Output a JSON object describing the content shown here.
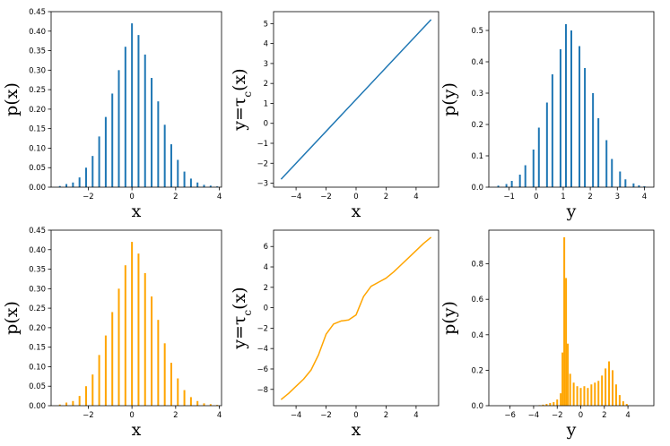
{
  "chart_data": [
    {
      "type": "bar",
      "xlabel": "x",
      "ylabel": "p(x)",
      "xlim": [
        -3.7,
        4.1
      ],
      "ylim": [
        0,
        0.45
      ],
      "xticks": [
        -2,
        0,
        2,
        4
      ],
      "yticks": [
        0.0,
        0.05,
        0.1,
        0.15,
        0.2,
        0.25,
        0.3,
        0.35,
        0.4,
        0.45
      ],
      "ytick_labels": [
        "0.00",
        "0.05",
        "0.10",
        "0.15",
        "0.20",
        "0.25",
        "0.30",
        "0.35",
        "0.40",
        "0.45"
      ],
      "color": "#1f77b4",
      "bin_width": 0.08,
      "x": [
        -3.3,
        -3.0,
        -2.7,
        -2.4,
        -2.1,
        -1.8,
        -1.5,
        -1.2,
        -0.9,
        -0.6,
        -0.3,
        0.0,
        0.3,
        0.6,
        0.9,
        1.2,
        1.5,
        1.8,
        2.1,
        2.4,
        2.7,
        3.0,
        3.3,
        3.6,
        3.9
      ],
      "values": [
        0.003,
        0.008,
        0.012,
        0.025,
        0.05,
        0.08,
        0.13,
        0.18,
        0.24,
        0.3,
        0.36,
        0.42,
        0.39,
        0.34,
        0.28,
        0.22,
        0.16,
        0.11,
        0.07,
        0.04,
        0.022,
        0.012,
        0.006,
        0.004,
        0.002
      ]
    },
    {
      "type": "line",
      "xlabel": "x",
      "ylabel": "y=τ_c(x)",
      "xlim": [
        -5.5,
        5.5
      ],
      "ylim": [
        -3.2,
        5.6
      ],
      "xticks": [
        -4,
        -2,
        0,
        2,
        4
      ],
      "yticks": [
        -3,
        -2,
        -1,
        0,
        1,
        2,
        3,
        4,
        5
      ],
      "color": "#1f77b4",
      "x": [
        -5,
        5
      ],
      "values": [
        -2.8,
        5.2
      ]
    },
    {
      "type": "bar",
      "xlabel": "y",
      "ylabel": "p(y)",
      "xlim": [
        -1.75,
        4.35
      ],
      "ylim": [
        0,
        0.56
      ],
      "xticks": [
        -1,
        0,
        1,
        2,
        3,
        4
      ],
      "yticks": [
        0.0,
        0.1,
        0.2,
        0.3,
        0.4,
        0.5
      ],
      "ytick_labels": [
        "0.0",
        "0.1",
        "0.2",
        "0.3",
        "0.4",
        "0.5"
      ],
      "color": "#1f77b4",
      "bin_width": 0.065,
      "x": [
        -1.4,
        -1.1,
        -0.9,
        -0.6,
        -0.4,
        -0.1,
        0.1,
        0.4,
        0.6,
        0.9,
        1.1,
        1.3,
        1.6,
        1.8,
        2.1,
        2.3,
        2.6,
        2.8,
        3.1,
        3.3,
        3.6,
        3.8,
        4.0
      ],
      "values": [
        0.005,
        0.01,
        0.02,
        0.04,
        0.07,
        0.12,
        0.19,
        0.27,
        0.36,
        0.44,
        0.52,
        0.5,
        0.45,
        0.38,
        0.3,
        0.22,
        0.15,
        0.09,
        0.05,
        0.025,
        0.012,
        0.006,
        0.003
      ]
    },
    {
      "type": "bar",
      "xlabel": "x",
      "ylabel": "p(x)",
      "xlim": [
        -3.7,
        4.1
      ],
      "ylim": [
        0,
        0.45
      ],
      "xticks": [
        -2,
        0,
        2,
        4
      ],
      "yticks": [
        0.0,
        0.05,
        0.1,
        0.15,
        0.2,
        0.25,
        0.3,
        0.35,
        0.4,
        0.45
      ],
      "ytick_labels": [
        "0.00",
        "0.05",
        "0.10",
        "0.15",
        "0.20",
        "0.25",
        "0.30",
        "0.35",
        "0.40",
        "0.45"
      ],
      "color": "#ffa500",
      "bin_width": 0.08,
      "x": [
        -3.3,
        -3.0,
        -2.7,
        -2.4,
        -2.1,
        -1.8,
        -1.5,
        -1.2,
        -0.9,
        -0.6,
        -0.3,
        0.0,
        0.3,
        0.6,
        0.9,
        1.2,
        1.5,
        1.8,
        2.1,
        2.4,
        2.7,
        3.0,
        3.3,
        3.6,
        3.9
      ],
      "values": [
        0.003,
        0.008,
        0.012,
        0.025,
        0.05,
        0.08,
        0.13,
        0.18,
        0.24,
        0.3,
        0.36,
        0.42,
        0.39,
        0.34,
        0.28,
        0.22,
        0.16,
        0.11,
        0.07,
        0.04,
        0.022,
        0.012,
        0.006,
        0.004,
        0.002
      ]
    },
    {
      "type": "line",
      "xlabel": "x",
      "ylabel": "y=τ_c(x)",
      "xlim": [
        -5.5,
        5.5
      ],
      "ylim": [
        -9.6,
        7.6
      ],
      "xticks": [
        -4,
        -2,
        0,
        2,
        4
      ],
      "yticks": [
        -8,
        -6,
        -4,
        -2,
        0,
        2,
        4,
        6
      ],
      "color": "#ffa500",
      "x": [
        -5.0,
        -4.5,
        -4.0,
        -3.5,
        -3.0,
        -2.5,
        -2.0,
        -1.5,
        -1.0,
        -0.5,
        0.0,
        0.5,
        1.0,
        1.5,
        2.0,
        2.5,
        3.0,
        3.5,
        4.0,
        4.5,
        5.0
      ],
      "values": [
        -9.0,
        -8.4,
        -7.7,
        -7.0,
        -6.1,
        -4.6,
        -2.6,
        -1.6,
        -1.3,
        -1.2,
        -0.7,
        1.1,
        2.1,
        2.5,
        2.9,
        3.5,
        4.2,
        4.9,
        5.6,
        6.3,
        6.9
      ]
    },
    {
      "type": "bar",
      "xlabel": "y",
      "ylabel": "p(y)",
      "xlim": [
        -7.8,
        6.2
      ],
      "ylim": [
        0,
        0.99
      ],
      "xticks": [
        -6,
        -4,
        -2,
        0,
        2,
        4
      ],
      "yticks": [
        0.0,
        0.2,
        0.4,
        0.6,
        0.8
      ],
      "ytick_labels": [
        "0.0",
        "0.2",
        "0.4",
        "0.6",
        "0.8"
      ],
      "color": "#ffa500",
      "bin_width": 0.14,
      "x": [
        -3.5,
        -3.2,
        -2.9,
        -2.6,
        -2.3,
        -2.0,
        -1.7,
        -1.55,
        -1.4,
        -1.25,
        -1.1,
        -0.9,
        -0.6,
        -0.3,
        0.0,
        0.3,
        0.6,
        0.9,
        1.2,
        1.5,
        1.8,
        2.1,
        2.4,
        2.7,
        3.0,
        3.3,
        3.6,
        3.9
      ],
      "values": [
        0.003,
        0.006,
        0.01,
        0.015,
        0.02,
        0.035,
        0.07,
        0.3,
        0.95,
        0.72,
        0.35,
        0.18,
        0.13,
        0.11,
        0.1,
        0.11,
        0.1,
        0.12,
        0.13,
        0.14,
        0.17,
        0.21,
        0.25,
        0.2,
        0.12,
        0.06,
        0.025,
        0.01
      ]
    }
  ]
}
